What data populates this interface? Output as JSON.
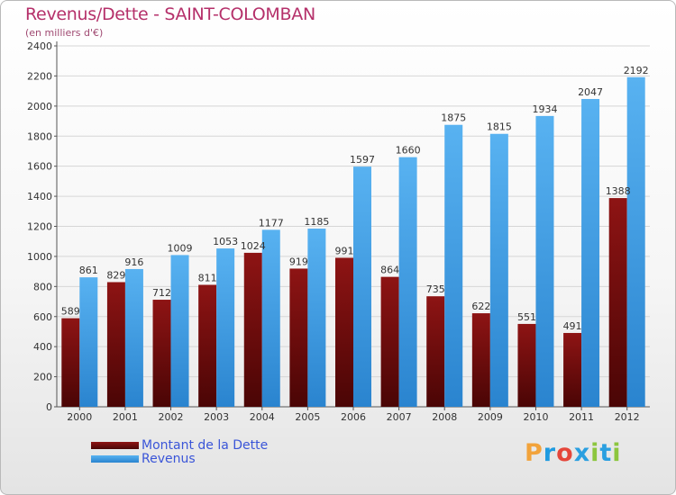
{
  "header": {
    "title": "Revenus/Dette - SAINT-COLOMBAN",
    "subtitle": "(en milliers d'€)"
  },
  "legend": {
    "debt_label": "Montant de la Dette",
    "revenue_label": "Revenus"
  },
  "logo": {
    "text": "Proxiti"
  },
  "colors": {
    "debt": "#6b0a0a",
    "revenue": "#3d9be3",
    "title": "#b5306a",
    "legend_text": "#3a55d8"
  },
  "chart_data": {
    "type": "bar",
    "title": "Revenus/Dette - SAINT-COLOMBAN",
    "ylabel": "(en milliers d'€)",
    "xlabel": "",
    "categories": [
      "2000",
      "2001",
      "2002",
      "2003",
      "2004",
      "2005",
      "2006",
      "2007",
      "2008",
      "2009",
      "2010",
      "2011",
      "2012"
    ],
    "series": [
      {
        "name": "Montant de la Dette",
        "values": [
          589,
          829,
          712,
          811,
          1024,
          919,
          991,
          864,
          735,
          622,
          551,
          491,
          1388
        ]
      },
      {
        "name": "Revenus",
        "values": [
          861,
          916,
          1009,
          1053,
          1177,
          1185,
          1597,
          1660,
          1875,
          1815,
          1934,
          2047,
          2192
        ]
      }
    ],
    "ylim": [
      0,
      2400
    ],
    "yticks": [
      0,
      200,
      400,
      600,
      800,
      1000,
      1200,
      1400,
      1600,
      1800,
      2000,
      2200,
      2400
    ],
    "grid": true,
    "legend_position": "bottom-left"
  }
}
